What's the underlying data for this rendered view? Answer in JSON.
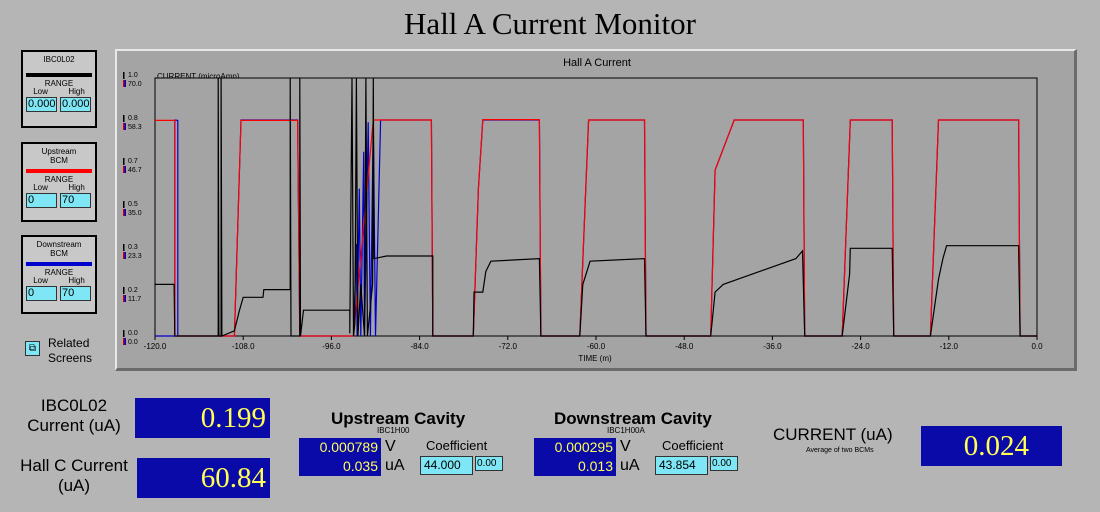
{
  "title": "Hall A Current Monitor",
  "panels": [
    {
      "name": "IBC0L02",
      "color": "#000000",
      "range_label": "RANGE",
      "low_label": "Low",
      "high_label": "High",
      "low": "0.000",
      "high": "0.000"
    },
    {
      "name": "Upstream BCM",
      "color": "#ff0000",
      "range_label": "RANGE",
      "low_label": "Low",
      "high_label": "High",
      "low": "0",
      "high": "70"
    },
    {
      "name": "Downstream BCM",
      "color": "#0000cc",
      "range_label": "RANGE",
      "low_label": "Low",
      "high_label": "High",
      "low": "0",
      "high": "70"
    }
  ],
  "related": {
    "icon": "related-screens-icon",
    "label": "Related Screens"
  },
  "chart_data": {
    "type": "line",
    "title": "Hall A Current",
    "ylabel": "CURRENT (microAmp)",
    "xlabel": "TIME (m)",
    "xlim": [
      -120,
      0
    ],
    "x_ticks": [
      "-120.0",
      "-108.0",
      "-96.0",
      "-84.0",
      "-72.0",
      "-60.0",
      "-48.0",
      "-36.0",
      "-24.0",
      "-12.0",
      "0.0"
    ],
    "y_ticks_left": [
      "1.0",
      "0.8",
      "0.7",
      "0.5",
      "0.3",
      "0.2",
      "0.0"
    ],
    "y_ticks_right": [
      "70.0",
      "58.3",
      "46.7",
      "35.0",
      "23.3",
      "11.7",
      "0.0"
    ],
    "ylim_upstream": [
      0,
      70
    ],
    "ylim_ibc": [
      0,
      1.0
    ],
    "grid": false,
    "series": [
      {
        "name": "Downstream BCM",
        "color": "#0000cc",
        "scale": "upstream",
        "points": [
          [
            -120,
            0
          ],
          [
            -117.3,
            0
          ],
          [
            -117.3,
            58.6
          ],
          [
            -116.9,
            58.5
          ],
          [
            -116.9,
            0
          ],
          [
            -111.4,
            0
          ],
          [
            -111,
            0
          ],
          [
            -109.2,
            0
          ],
          [
            -108.3,
            58.6
          ],
          [
            -100.6,
            58.6
          ],
          [
            -100.3,
            0
          ],
          [
            -93,
            0
          ],
          [
            -92.6,
            25
          ],
          [
            -92.5,
            0
          ],
          [
            -92.2,
            40
          ],
          [
            -92,
            0
          ],
          [
            -91.6,
            50
          ],
          [
            -91.5,
            0
          ],
          [
            -91,
            58
          ],
          [
            -90.7,
            0
          ],
          [
            -90.3,
            58.6
          ],
          [
            -90,
            0
          ],
          [
            -89.3,
            58.6
          ],
          [
            -82.4,
            58.6
          ],
          [
            -82.2,
            0
          ],
          [
            -76.7,
            0
          ],
          [
            -76,
            40
          ],
          [
            -75.4,
            58.6
          ],
          [
            -67.7,
            58.6
          ],
          [
            -67.5,
            0
          ],
          [
            -62.2,
            0
          ],
          [
            -61.5,
            35
          ],
          [
            -61,
            58.6
          ],
          [
            -53.4,
            58.6
          ],
          [
            -53.2,
            0
          ],
          [
            -44.4,
            0
          ],
          [
            -43.8,
            45
          ],
          [
            -41.2,
            58.6
          ],
          [
            -31.8,
            58.6
          ],
          [
            -31.6,
            0
          ],
          [
            -26.5,
            0
          ],
          [
            -25.4,
            58.6
          ],
          [
            -19.7,
            58.6
          ],
          [
            -19.5,
            0
          ],
          [
            -14.5,
            0
          ],
          [
            -13.4,
            58.6
          ],
          [
            -2.5,
            58.6
          ],
          [
            -2.3,
            0
          ],
          [
            0,
            0
          ]
        ]
      },
      {
        "name": "Upstream BCM",
        "color": "#ff0000",
        "scale": "upstream",
        "points": [
          [
            -120,
            58.5
          ],
          [
            -117.3,
            58.5
          ],
          [
            -117.3,
            0
          ],
          [
            -109.2,
            0
          ],
          [
            -108.3,
            58.5
          ],
          [
            -100.6,
            58.5
          ],
          [
            -100.3,
            0
          ],
          [
            -93,
            0
          ],
          [
            -90.3,
            58.6
          ],
          [
            -82.4,
            58.6
          ],
          [
            -82.2,
            0
          ],
          [
            -76.7,
            0
          ],
          [
            -76,
            40
          ],
          [
            -75.4,
            58.7
          ],
          [
            -67.7,
            58.7
          ],
          [
            -67.5,
            0
          ],
          [
            -62.2,
            0
          ],
          [
            -61.5,
            35
          ],
          [
            -61,
            58.6
          ],
          [
            -53.4,
            58.6
          ],
          [
            -53.2,
            0
          ],
          [
            -44.4,
            0
          ],
          [
            -43.8,
            45
          ],
          [
            -41.2,
            58.6
          ],
          [
            -31.8,
            58.6
          ],
          [
            -31.6,
            0
          ],
          [
            -26.5,
            0
          ],
          [
            -25.4,
            58.6
          ],
          [
            -19.7,
            58.6
          ],
          [
            -19.5,
            0
          ],
          [
            -14.5,
            0
          ],
          [
            -13.4,
            58.6
          ],
          [
            -2.5,
            58.6
          ],
          [
            -2.3,
            0
          ],
          [
            0,
            0
          ]
        ]
      },
      {
        "name": "IBC0L02",
        "color": "#000000",
        "scale": "ibc",
        "points": [
          [
            -120,
            0.2
          ],
          [
            -117.4,
            0.2
          ],
          [
            -117.3,
            0
          ],
          [
            -111.4,
            0
          ],
          [
            -111.4,
            1.0
          ],
          [
            -111.3,
            0
          ],
          [
            -111,
            0
          ],
          [
            -111,
            1.0
          ],
          [
            -110.9,
            0
          ],
          [
            -109.2,
            0.02
          ],
          [
            -108.5,
            0.1
          ],
          [
            -108,
            0.15
          ],
          [
            -105.3,
            0.15
          ],
          [
            -105.2,
            0.18
          ],
          [
            -101.6,
            0.18
          ],
          [
            -101.6,
            1.0
          ],
          [
            -101.5,
            0
          ],
          [
            -100.3,
            0
          ],
          [
            -100.3,
            1.0
          ],
          [
            -100.2,
            0
          ],
          [
            -99.8,
            0.1
          ],
          [
            -94.2,
            0.1
          ],
          [
            -93.5,
            0.1
          ],
          [
            -93.5,
            0.01
          ],
          [
            -93.2,
            1.0
          ],
          [
            -93,
            0
          ],
          [
            -92.8,
            0.05
          ],
          [
            -92.6,
            1.0
          ],
          [
            -92.4,
            0
          ],
          [
            -92,
            0.2
          ],
          [
            -91.5,
            0
          ],
          [
            -91.3,
            1.0
          ],
          [
            -91.1,
            0
          ],
          [
            -90.4,
            0.2
          ],
          [
            -90.3,
            1.0
          ],
          [
            -90.2,
            0.3
          ],
          [
            -88.5,
            0.31
          ],
          [
            -82.2,
            0.31
          ],
          [
            -82.2,
            0
          ],
          [
            -76.7,
            0
          ],
          [
            -76.6,
            0.17
          ],
          [
            -75.4,
            0.17
          ],
          [
            -75,
            0.25
          ],
          [
            -74.3,
            0.29
          ],
          [
            -67.7,
            0.3
          ],
          [
            -67.5,
            0
          ],
          [
            -62.2,
            0
          ],
          [
            -61.8,
            0.2
          ],
          [
            -60.8,
            0.29
          ],
          [
            -53.4,
            0.3
          ],
          [
            -53.2,
            0
          ],
          [
            -44.4,
            0
          ],
          [
            -43.8,
            0.17
          ],
          [
            -42.7,
            0.2
          ],
          [
            -32.8,
            0.3
          ],
          [
            -31.9,
            0.33
          ],
          [
            -31.6,
            0
          ],
          [
            -26.5,
            0
          ],
          [
            -25.5,
            0.24
          ],
          [
            -25.4,
            0.34
          ],
          [
            -19.7,
            0.34
          ],
          [
            -19.5,
            0
          ],
          [
            -14.5,
            0
          ],
          [
            -13.4,
            0.22
          ],
          [
            -12.8,
            0.3
          ],
          [
            -12.3,
            0.35
          ],
          [
            -2.5,
            0.35
          ],
          [
            -2.3,
            0
          ],
          [
            0,
            0
          ]
        ]
      }
    ]
  },
  "ibc_current": {
    "label": "IBC0L02 Current (uA)",
    "value": "0.199"
  },
  "hallc_current": {
    "label": "Hall C Current (uA)",
    "value": "60.84"
  },
  "upstream": {
    "title": "Upstream Cavity",
    "sub": "IBC1H00",
    "v_value": "0.000789",
    "v_unit": "V",
    "ua_value": "0.035",
    "ua_unit": "uA",
    "coef_label": "Coefficient",
    "coef": "44.000",
    "small": "0.00"
  },
  "downstream": {
    "title": "Downstream Cavity",
    "sub": "IBC1H00A",
    "v_value": "0.000295",
    "v_unit": "V",
    "ua_value": "0.013",
    "ua_unit": "uA",
    "coef_label": "Coefficient",
    "coef": "43.854",
    "small": "0.00"
  },
  "current": {
    "label": "CURRENT (uA)",
    "sub": "Average of two BCMs",
    "value": "0.024"
  }
}
